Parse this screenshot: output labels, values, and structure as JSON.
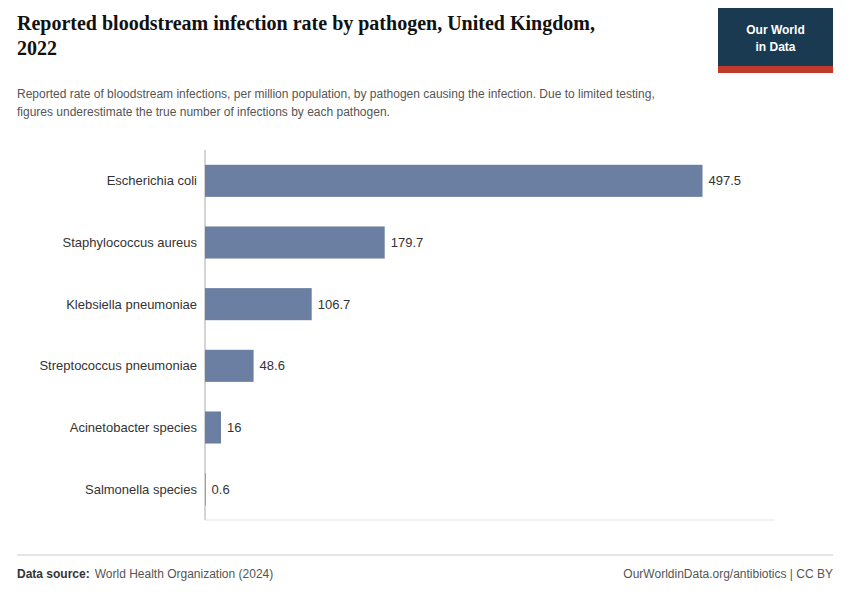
{
  "chart_data": {
    "type": "bar",
    "orientation": "horizontal",
    "title": "Reported bloodstream infection rate by pathogen, United Kingdom,\n2022",
    "subtitle": "Reported rate of bloodstream infections, per million population, by pathogen causing the infection. Due to limited testing,\nfigures underestimate the true number of infections by each pathogen.",
    "categories": [
      "Escherichia coli",
      "Staphylococcus aureus",
      "Klebsiella pneumoniae",
      "Streptococcus pneumoniae",
      "Acinetobacter species",
      "Salmonella species"
    ],
    "values": [
      497.5,
      179.7,
      106.7,
      48.6,
      16,
      0.6
    ],
    "color": "#6b7fa3",
    "xlim": [
      0,
      570
    ],
    "data_labels": true,
    "tick_labels": "y",
    "grid": false,
    "annotations": [
      "Data source:",
      "World Health Organization (2024)",
      "OurWorldinData.org/antibiotics | CC BY",
      "Our World",
      "in Data"
    ]
  }
}
